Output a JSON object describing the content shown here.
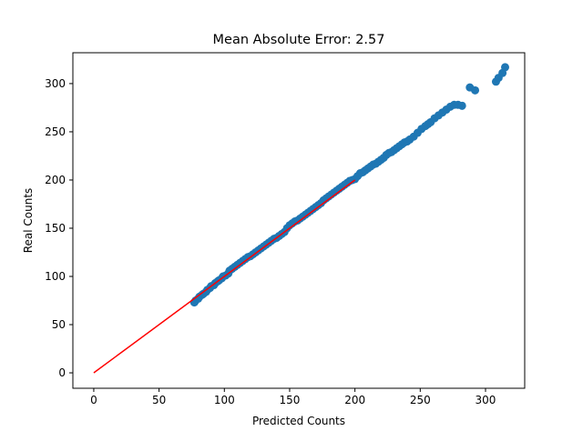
{
  "chart_data": {
    "type": "scatter",
    "title": "Mean Absolute Error: 2.57",
    "xlabel": "Predicted Counts",
    "ylabel": "Real Counts",
    "xlim": [
      -16,
      330
    ],
    "ylim": [
      -16,
      332
    ],
    "xticks": [
      0,
      50,
      100,
      150,
      200,
      250,
      300
    ],
    "yticks": [
      0,
      50,
      100,
      150,
      200,
      250,
      300
    ],
    "grid": false,
    "colors": {
      "points": "#1f77b4",
      "reference_line": "#ff0000"
    },
    "reference_line": {
      "x": [
        0,
        200
      ],
      "y": [
        0,
        200
      ]
    },
    "series": [
      {
        "x": [
          77,
          78,
          80,
          81,
          83,
          84,
          86,
          87,
          89,
          90,
          92,
          93,
          95,
          96,
          98,
          99,
          101,
          103,
          104,
          106,
          108,
          110,
          112,
          114,
          116,
          118,
          120,
          122,
          124,
          126,
          128,
          130,
          132,
          134,
          136,
          138,
          140,
          142,
          144,
          146,
          148,
          150,
          152,
          154,
          156,
          158,
          160,
          162,
          164,
          166,
          168,
          170,
          172,
          174,
          176,
          178,
          180,
          182,
          184,
          186,
          188,
          190,
          192,
          194,
          196,
          198,
          200,
          202,
          204,
          206,
          208,
          210,
          212,
          214,
          216,
          218,
          220,
          222,
          224,
          226,
          228,
          230,
          232,
          234,
          236,
          238,
          240,
          242,
          245,
          248,
          251,
          254,
          256,
          258,
          261,
          264,
          267,
          270,
          273,
          276,
          279,
          282,
          288,
          292,
          308,
          310,
          313,
          315
        ],
        "y": [
          73,
          75,
          77,
          79,
          81,
          82,
          84,
          86,
          88,
          90,
          91,
          93,
          95,
          96,
          98,
          100,
          101,
          103,
          106,
          108,
          110,
          112,
          114,
          116,
          118,
          120,
          121,
          123,
          125,
          127,
          129,
          131,
          133,
          135,
          137,
          139,
          140,
          142,
          144,
          146,
          150,
          153,
          155,
          157,
          158,
          160,
          162,
          164,
          166,
          168,
          170,
          172,
          174,
          176,
          179,
          181,
          183,
          185,
          187,
          189,
          191,
          193,
          195,
          197,
          199,
          200,
          201,
          204,
          207,
          208,
          210,
          212,
          214,
          216,
          217,
          219,
          221,
          223,
          226,
          228,
          229,
          231,
          233,
          235,
          237,
          239,
          240,
          242,
          245,
          249,
          253,
          256,
          258,
          260,
          264,
          267,
          270,
          273,
          276,
          278,
          278,
          277,
          296,
          293,
          302,
          306,
          311,
          317
        ]
      }
    ]
  }
}
